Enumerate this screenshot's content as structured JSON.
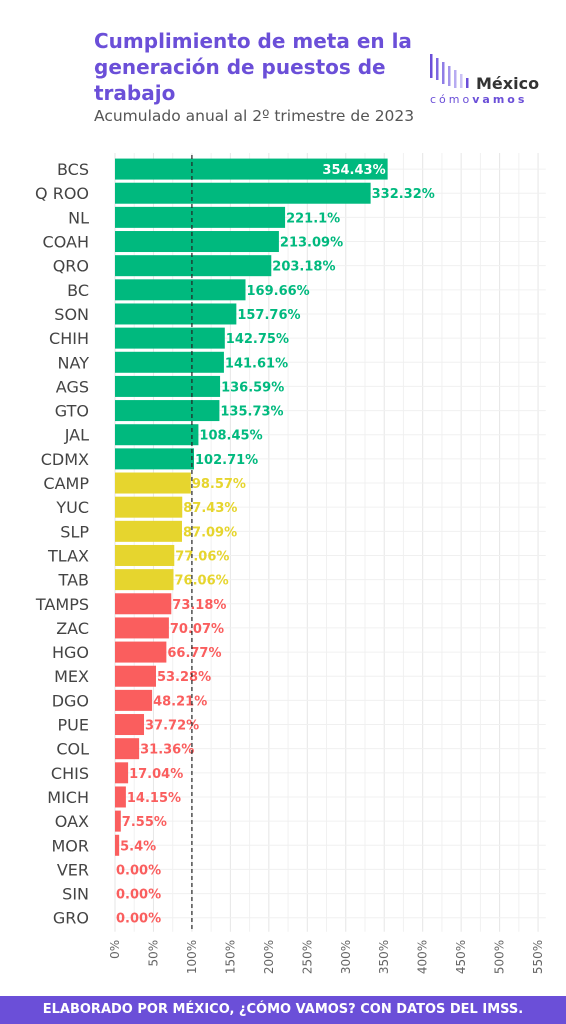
{
  "chart_data": {
    "type": "bar",
    "orientation": "horizontal",
    "title": "Cumplimiento de meta en la generación de puestos de trabajo",
    "subtitle": "Acumulado anual al 2º trimestre de 2023",
    "categories": [
      "BCS",
      "Q ROO",
      "NL",
      "COAH",
      "QRO",
      "BC",
      "SON",
      "CHIH",
      "NAY",
      "AGS",
      "GTO",
      "JAL",
      "CDMX",
      "CAMP",
      "YUC",
      "SLP",
      "TLAX",
      "TAB",
      "TAMPS",
      "ZAC",
      "HGO",
      "MEX",
      "DGO",
      "PUE",
      "COL",
      "CHIS",
      "MICH",
      "OAX",
      "MOR",
      "VER",
      "SIN",
      "GRO"
    ],
    "values": [
      354.43,
      332.32,
      221.1,
      213.09,
      203.18,
      169.66,
      157.76,
      142.75,
      141.61,
      136.59,
      135.73,
      108.45,
      102.71,
      98.57,
      87.43,
      87.09,
      77.06,
      76.06,
      73.18,
      70.07,
      66.77,
      53.28,
      48.21,
      37.72,
      31.36,
      17.04,
      14.15,
      7.55,
      5.4,
      0,
      0,
      0
    ],
    "data_labels": [
      "354.43%",
      "332.32%",
      "221.1%",
      "213.09%",
      "203.18%",
      "169.66%",
      "157.76%",
      "142.75%",
      "141.61%",
      "136.59%",
      "135.73%",
      "108.45%",
      "102.71%",
      "98.57%",
      "87.43%",
      "87.09%",
      "77.06%",
      "76.06%",
      "73.18%",
      "70.07%",
      "66.77%",
      "53.28%",
      "48.21%",
      "37.72%",
      "31.36%",
      "17.04%",
      "14.15%",
      "7.55%",
      "5.4%",
      "0.00%",
      "0.00%",
      "0.00%"
    ],
    "xlim": [
      0,
      560
    ],
    "xticks": [
      0,
      50,
      100,
      150,
      200,
      250,
      300,
      350,
      400,
      450,
      500,
      550
    ],
    "xtick_labels": [
      "0%",
      "50%",
      "100%",
      "150%",
      "200%",
      "250%",
      "300%",
      "350%",
      "400%",
      "450%",
      "500%",
      "550%"
    ],
    "reference_line": 100,
    "grid": true,
    "colors": {
      "above_100": "#00b97e",
      "between_75_100": "#e6d52e",
      "below_75": "#fa5e5e",
      "reference": "#222222",
      "grid": "#e6e6e6"
    }
  },
  "logo": {
    "name": "México",
    "tag_light": "cómo",
    "tag_bold": "vamos"
  },
  "footer": "ELABORADO POR MÉXICO, ¿CÓMO VAMOS? CON DATOS DEL IMSS."
}
